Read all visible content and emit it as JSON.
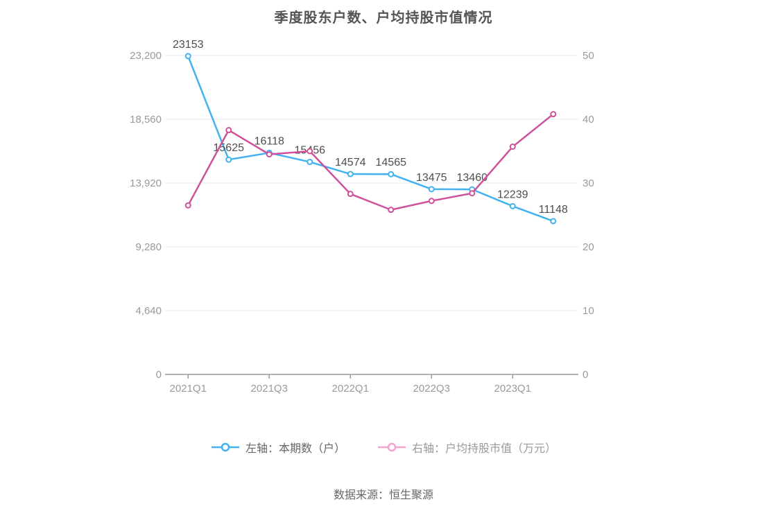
{
  "title": "季度股东户数、户均持股市值情况",
  "source": "数据来源：恒生聚源",
  "legend": {
    "items": [
      {
        "label": "左轴：本期数（户）",
        "icon_color": "#41b1f0",
        "label_color": "#666666"
      },
      {
        "label": "右轴：户均持股市值（万元）",
        "icon_color": "#f3a3d0",
        "label_color": "#999999"
      }
    ]
  },
  "chart_data": {
    "type": "line",
    "title": "季度股东户数、户均持股市值情况",
    "categories": [
      "2021Q1",
      "2021Q2",
      "2021Q3",
      "2021Q4",
      "2022Q1",
      "2022Q2",
      "2022Q3",
      "2022Q4",
      "2023Q1",
      "2023Q2"
    ],
    "x_ticks": [
      {
        "index": 0,
        "label": "2021Q1"
      },
      {
        "index": 2,
        "label": "2021Q3"
      },
      {
        "index": 4,
        "label": "2022Q1"
      },
      {
        "index": 6,
        "label": "2022Q3"
      },
      {
        "index": 8,
        "label": "2023Q1"
      }
    ],
    "series": [
      {
        "name": "左轴：本期数（户）",
        "axis": "left",
        "color": "#41b1f0",
        "values": [
          23153,
          15625,
          16118,
          15456,
          14574,
          14565,
          13475,
          13460,
          12239,
          11148
        ],
        "show_point_labels": true
      },
      {
        "name": "右轴：户均持股市值（万元）",
        "axis": "right",
        "color": "#d0519b",
        "values": [
          26.5,
          38.3,
          34.5,
          35.0,
          28.3,
          25.8,
          27.2,
          28.4,
          35.7,
          40.8
        ],
        "show_point_labels": false
      }
    ],
    "left_axis": {
      "min": 0,
      "max": 23200,
      "tick_values": [
        0,
        4640,
        9280,
        13920,
        18560,
        23200
      ],
      "tick_labels": [
        "0",
        "4,640",
        "9,280",
        "13,920",
        "18,560",
        "23,200"
      ]
    },
    "right_axis": {
      "min": 0,
      "max": 50,
      "tick_values": [
        0,
        10,
        20,
        30,
        40,
        50
      ],
      "tick_labels": [
        "0",
        "10",
        "20",
        "30",
        "40",
        "50"
      ]
    },
    "grid": true,
    "legend_position": "bottom",
    "style": {
      "grid_color": "#e8ebf4",
      "axis_line_color": "#999999",
      "axis_label_color": "#999999",
      "point_label_color": "#4d4d4d"
    }
  }
}
